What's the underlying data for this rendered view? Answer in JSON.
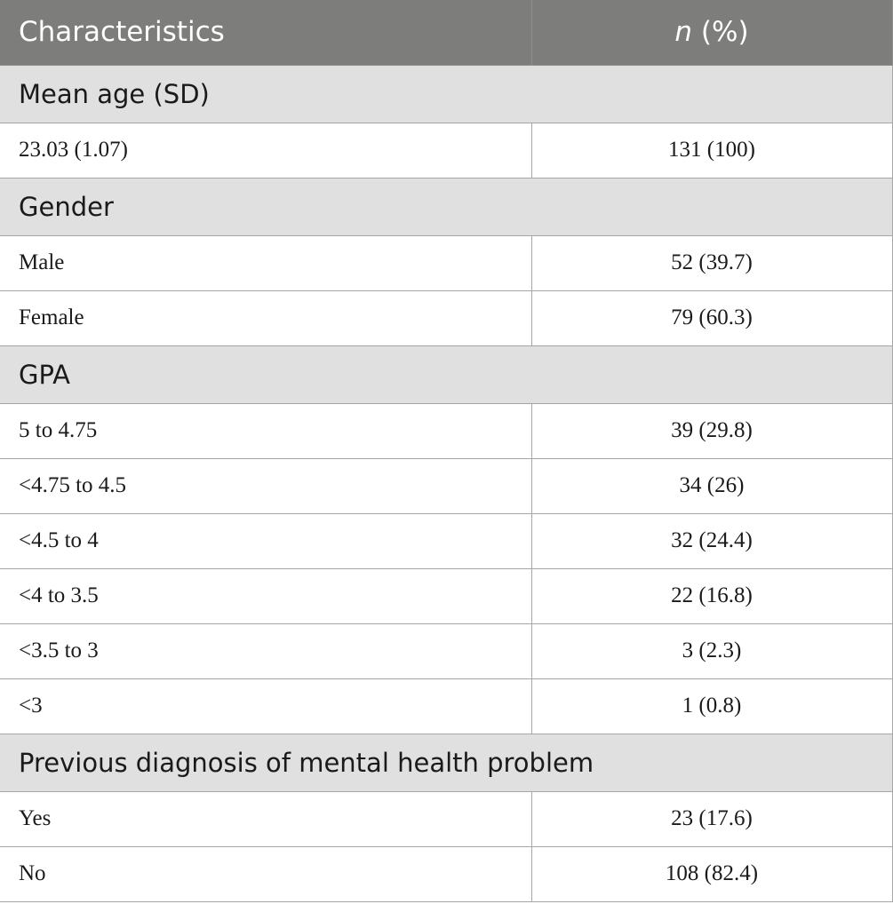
{
  "header": {
    "characteristics": "Characteristics",
    "n_italic": "n",
    "n_rest": " (%)"
  },
  "sections": [
    {
      "title": "Mean age (SD)",
      "rows": [
        {
          "label": "23.03 (1.07)",
          "value": "131 (100)"
        }
      ]
    },
    {
      "title": "Gender",
      "rows": [
        {
          "label": "Male",
          "value": "52 (39.7)"
        },
        {
          "label": "Female",
          "value": "79 (60.3)"
        }
      ]
    },
    {
      "title": "GPA",
      "rows": [
        {
          "label": "5 to 4.75",
          "value": "39 (29.8)"
        },
        {
          "label": "<4.75 to 4.5",
          "value": "34 (26)"
        },
        {
          "label": "<4.5 to 4",
          "value": "32 (24.4)"
        },
        {
          "label": "<4 to 3.5",
          "value": "22 (16.8)"
        },
        {
          "label": "<3.5 to 3",
          "value": "3 (2.3)"
        },
        {
          "label": "<3",
          "value": "1 (0.8)"
        }
      ]
    },
    {
      "title": "Previous diagnosis of mental health problem",
      "rows": [
        {
          "label": "Yes",
          "value": "23 (17.6)"
        },
        {
          "label": "No",
          "value": "108 (82.4)"
        }
      ]
    }
  ]
}
